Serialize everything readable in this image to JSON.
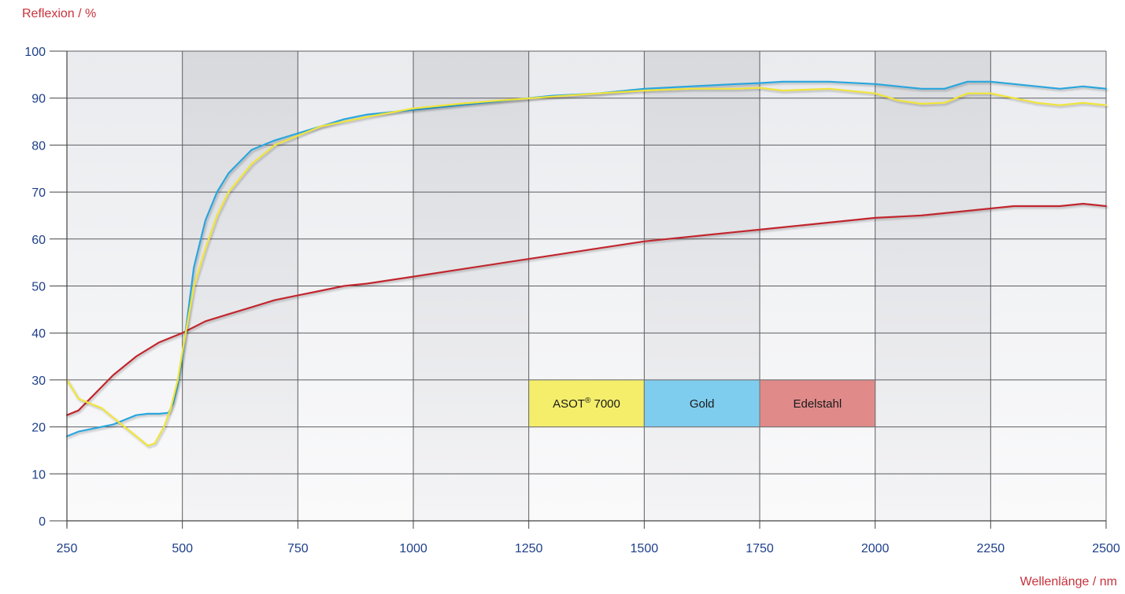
{
  "chart_data": {
    "type": "line",
    "xlabel": "Wellenlänge / nm",
    "ylabel": "Reflexion / %",
    "xlim": [
      250,
      2500
    ],
    "ylim": [
      0,
      100
    ],
    "x_ticks": [
      "250",
      "500",
      "750",
      "1000",
      "1250",
      "1500",
      "1750",
      "2000",
      "2250",
      "2500"
    ],
    "y_ticks": [
      "0",
      "10",
      "20",
      "30",
      "40",
      "50",
      "60",
      "70",
      "80",
      "90",
      "100"
    ],
    "grid": true,
    "legend_position": "center-right",
    "legend": [
      {
        "label": "ASOT",
        "superscript": "®",
        "suffix": " 7000",
        "color": "#f4ee6b"
      },
      {
        "label": "Gold",
        "superscript": "",
        "suffix": "",
        "color": "#7fcdee"
      },
      {
        "label": "Edelstahl",
        "superscript": "",
        "suffix": "",
        "color": "#e08a8a"
      }
    ],
    "series": [
      {
        "name": "ASOT® 7000",
        "color": "#f0e43a",
        "x": [
          250,
          275,
          300,
          325,
          350,
          375,
          400,
          425,
          440,
          460,
          475,
          490,
          500,
          525,
          550,
          575,
          600,
          650,
          700,
          750,
          800,
          850,
          900,
          1000,
          1100,
          1200,
          1300,
          1400,
          1500,
          1600,
          1700,
          1750,
          1800,
          1900,
          2000,
          2050,
          2100,
          2150,
          2200,
          2250,
          2300,
          2350,
          2400,
          2450,
          2500
        ],
        "y": [
          30,
          26,
          25,
          24,
          22,
          20,
          18,
          16,
          16.5,
          20,
          24,
          30,
          36,
          50,
          58,
          65,
          70,
          76,
          80,
          82,
          84,
          85,
          86,
          87.8,
          88.8,
          89.6,
          90.3,
          91,
          91.6,
          92,
          92,
          92.2,
          91.6,
          92,
          91,
          89.5,
          88.8,
          89,
          91,
          91,
          90,
          89,
          88.5,
          89,
          88.5
        ]
      },
      {
        "name": "Gold",
        "color": "#2aa5dc",
        "x": [
          250,
          275,
          300,
          325,
          350,
          375,
          400,
          425,
          450,
          470,
          480,
          490,
          500,
          525,
          550,
          575,
          600,
          650,
          700,
          750,
          800,
          850,
          900,
          1000,
          1100,
          1200,
          1300,
          1400,
          1500,
          1600,
          1700,
          1750,
          1800,
          1900,
          2000,
          2050,
          2100,
          2150,
          2200,
          2250,
          2300,
          2350,
          2400,
          2450,
          2500
        ],
        "y": [
          18,
          19,
          19.5,
          20,
          20.5,
          21.5,
          22.5,
          22.8,
          22.8,
          23,
          25,
          29,
          35,
          54,
          64,
          70,
          74,
          79,
          81,
          82.5,
          84,
          85.5,
          86.5,
          87.5,
          88.5,
          89.5,
          90.5,
          91,
          92,
          92.5,
          93,
          93.2,
          93.5,
          93.5,
          93,
          92.5,
          92,
          92,
          93.5,
          93.5,
          93,
          92.5,
          92,
          92.5,
          92
        ]
      },
      {
        "name": "Edelstahl",
        "color": "#c0272d",
        "x": [
          250,
          275,
          300,
          325,
          350,
          375,
          400,
          450,
          500,
          550,
          600,
          650,
          700,
          750,
          800,
          850,
          900,
          1000,
          1100,
          1200,
          1300,
          1400,
          1500,
          1600,
          1700,
          1750,
          1800,
          1900,
          2000,
          2100,
          2200,
          2250,
          2300,
          2350,
          2400,
          2450,
          2500
        ],
        "y": [
          22.5,
          23.5,
          26,
          28.5,
          31,
          33,
          35,
          38,
          40,
          42.5,
          44,
          45.5,
          47,
          48,
          49,
          50,
          50.5,
          52,
          53.5,
          55,
          56.5,
          58,
          59.5,
          60.5,
          61.5,
          62,
          62.5,
          63.5,
          64.5,
          65,
          66,
          66.5,
          67,
          67,
          67,
          67.5,
          67
        ]
      }
    ]
  }
}
